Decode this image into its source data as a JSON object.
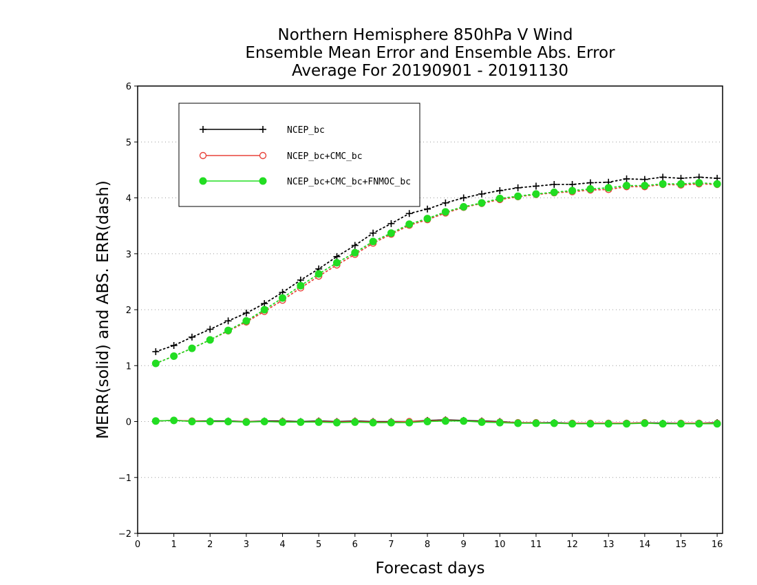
{
  "chart_data": {
    "type": "line",
    "title_lines": [
      "Northern Hemisphere 850hPa V Wind",
      "Ensemble Mean Error and Ensemble Abs. Error",
      "Average For 20190901 - 20191130"
    ],
    "xlabel": "Forecast days",
    "ylabel": "MERR(solid) and ABS. ERR(dash)",
    "xlim": [
      0,
      16.15
    ],
    "ylim": [
      -2,
      6
    ],
    "xticks": [
      0,
      1,
      2,
      3,
      4,
      5,
      6,
      7,
      8,
      9,
      10,
      11,
      12,
      13,
      14,
      15,
      16
    ],
    "xtick_labels": [
      "0",
      "1",
      "2",
      "3",
      "4",
      "5",
      "6",
      "7",
      "8",
      "9",
      "10",
      "11",
      "12",
      "13",
      "14",
      "15",
      "16"
    ],
    "yticks": [
      -2,
      -1,
      0,
      1,
      2,
      3,
      4,
      5,
      6
    ],
    "ytick_labels": [
      "−2",
      "−1",
      "0",
      "1",
      "2",
      "3",
      "4",
      "5",
      "6"
    ],
    "grid": "horizontal dotted",
    "legend_position": "top-left",
    "x": [
      0.5,
      1,
      1.5,
      2,
      2.5,
      3,
      3.5,
      4,
      4.5,
      5,
      5.5,
      6,
      6.5,
      7,
      7.5,
      8,
      8.5,
      9,
      9.5,
      10,
      10.5,
      11,
      11.5,
      12,
      12.5,
      13,
      13.5,
      14,
      14.5,
      15,
      15.5,
      16
    ],
    "series": [
      {
        "name": "NCEP_bc",
        "color": "#000000",
        "marker": "plus",
        "abs_err": [
          1.25,
          1.36,
          1.51,
          1.65,
          1.8,
          1.94,
          2.11,
          2.31,
          2.53,
          2.73,
          2.95,
          3.15,
          3.37,
          3.54,
          3.72,
          3.8,
          3.91,
          4.0,
          4.07,
          4.13,
          4.18,
          4.21,
          4.24,
          4.24,
          4.27,
          4.28,
          4.34,
          4.33,
          4.37,
          4.35,
          4.37,
          4.35
        ],
        "mean_err": [
          0.01,
          0.02,
          0.01,
          0.01,
          0.01,
          0.0,
          0.01,
          0.01,
          0.0,
          0.01,
          0.0,
          0.01,
          0.0,
          0.0,
          0.0,
          0.02,
          0.03,
          0.02,
          0.01,
          0.0,
          -0.02,
          -0.02,
          -0.02,
          -0.03,
          -0.03,
          -0.03,
          -0.03,
          -0.02,
          -0.03,
          -0.03,
          -0.03,
          -0.02
        ]
      },
      {
        "name": "NCEP_bc+CMC_bc",
        "color": "#e8423a",
        "marker": "circle-open",
        "abs_err": [
          1.04,
          1.17,
          1.31,
          1.46,
          1.62,
          1.78,
          1.97,
          2.17,
          2.39,
          2.6,
          2.8,
          2.99,
          3.19,
          3.35,
          3.51,
          3.61,
          3.73,
          3.83,
          3.9,
          3.97,
          4.02,
          4.06,
          4.09,
          4.11,
          4.14,
          4.15,
          4.2,
          4.2,
          4.24,
          4.23,
          4.25,
          4.24
        ],
        "mean_err": [
          0.01,
          0.02,
          0.01,
          0.0,
          0.0,
          0.0,
          0.0,
          0.0,
          -0.01,
          0.0,
          -0.01,
          0.0,
          -0.01,
          -0.01,
          0.0,
          0.01,
          0.02,
          0.01,
          0.0,
          -0.01,
          -0.02,
          -0.02,
          -0.03,
          -0.03,
          -0.03,
          -0.03,
          -0.03,
          -0.02,
          -0.04,
          -0.03,
          -0.03,
          -0.03
        ]
      },
      {
        "name": "NCEP_bc+CMC_bc+FNMOC_bc",
        "color": "#22dd22",
        "marker": "circle-filled",
        "abs_err": [
          1.04,
          1.17,
          1.31,
          1.46,
          1.63,
          1.8,
          2.0,
          2.21,
          2.43,
          2.64,
          2.84,
          3.02,
          3.22,
          3.37,
          3.53,
          3.63,
          3.75,
          3.84,
          3.91,
          3.99,
          4.03,
          4.07,
          4.1,
          4.13,
          4.16,
          4.18,
          4.22,
          4.22,
          4.25,
          4.25,
          4.27,
          4.25
        ],
        "mean_err": [
          0.01,
          0.02,
          0.0,
          0.0,
          0.0,
          -0.01,
          0.0,
          -0.01,
          -0.01,
          -0.01,
          -0.02,
          -0.01,
          -0.02,
          -0.02,
          -0.02,
          0.0,
          0.01,
          0.01,
          -0.01,
          -0.02,
          -0.03,
          -0.03,
          -0.03,
          -0.04,
          -0.04,
          -0.04,
          -0.04,
          -0.03,
          -0.04,
          -0.04,
          -0.04,
          -0.04
        ]
      }
    ]
  }
}
